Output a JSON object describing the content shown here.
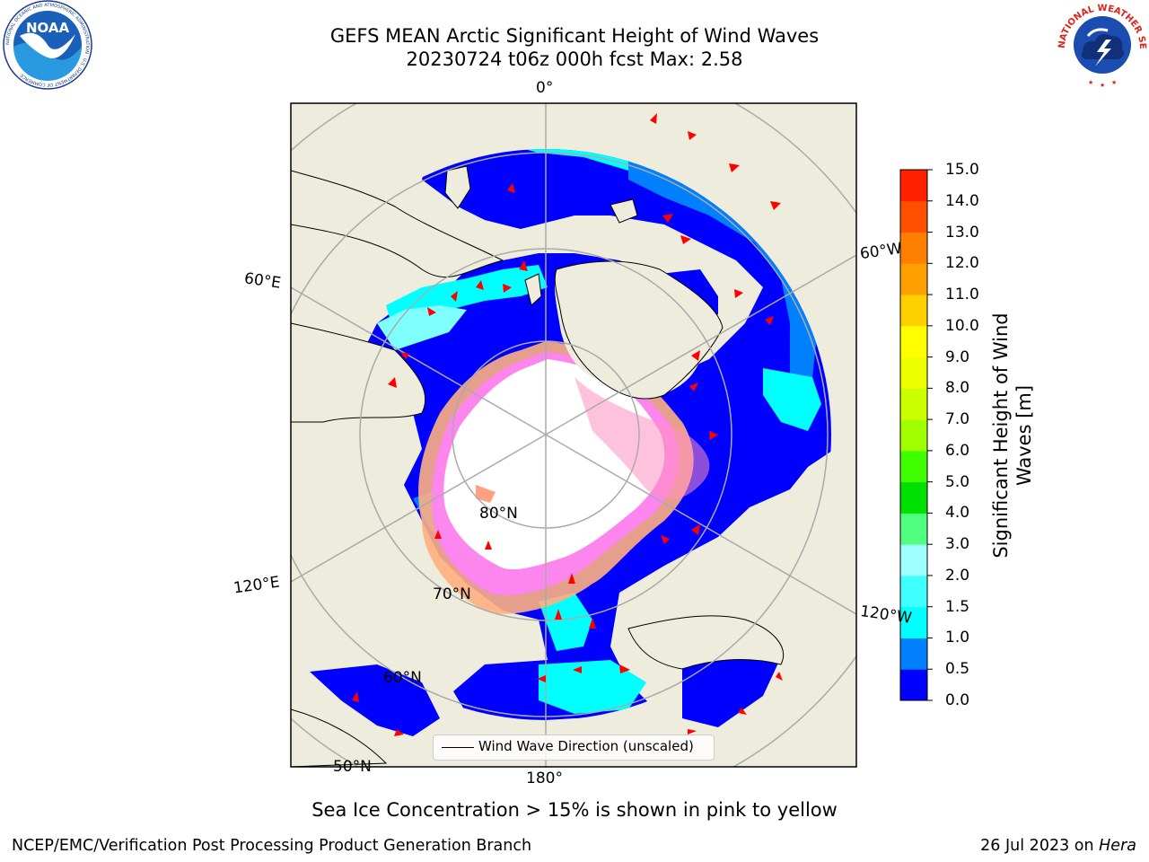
{
  "header": {
    "title_line1": "GEFS MEAN Arctic Significant Height of Wind Waves",
    "title_line2": "20230724 t06z 000h fcst   Max: 2.58"
  },
  "logos": {
    "noaa": {
      "text": "NOAA",
      "ring_text": "NATIONAL OCEANIC AND ATMOSPHERIC ADMINISTRATION · U.S. DEPARTMENT OF COMMERCE"
    },
    "nws": {
      "ring_text": "NATIONAL WEATHER SERVICE"
    }
  },
  "map": {
    "projection": "north-polar-stereographic",
    "land_color": "#eeecdc",
    "ocean_colors": [
      "#0000ff",
      "#0080ff",
      "#00ffff",
      "#80ffff"
    ],
    "ice_colors": [
      "#ff80ff",
      "#ff90c0",
      "#ffb080",
      "#ffe066"
    ],
    "arrow_color": "#ff0000",
    "gridline_color": "#aaaaaa",
    "lon_labels": [
      "0°",
      "60°E",
      "120°E",
      "180°",
      "120°W",
      "60°W"
    ],
    "lat_labels": [
      "80°N",
      "70°N",
      "60°N",
      "50°N"
    ]
  },
  "colorbar": {
    "title_line1": "Significant Height of Wind",
    "title_line2": "Waves [m]",
    "ticks": [
      "0.0",
      "0.5",
      "1.0",
      "1.5",
      "2.0",
      "3.0",
      "4.0",
      "5.0",
      "6.0",
      "7.0",
      "8.0",
      "9.0",
      "10.0",
      "11.0",
      "12.0",
      "13.0",
      "14.0",
      "15.0"
    ],
    "colors": [
      "#0000ff",
      "#0080ff",
      "#00ffff",
      "#40ffff",
      "#a0ffff",
      "#50ff80",
      "#00e000",
      "#40ff00",
      "#a0ff00",
      "#ccff00",
      "#eeff00",
      "#ffff00",
      "#ffd000",
      "#ffa000",
      "#ff8000",
      "#ff5000",
      "#ff2000"
    ]
  },
  "legend": {
    "label": "Wind Wave Direction (unscaled)"
  },
  "ice_note": "Sea Ice Concentration > 15% is shown in pink to yellow",
  "footer": {
    "left": "NCEP/EMC/Verification Post Processing Product Generation Branch",
    "right_prefix": "26 Jul 2023 on ",
    "right_system": "Hera"
  }
}
